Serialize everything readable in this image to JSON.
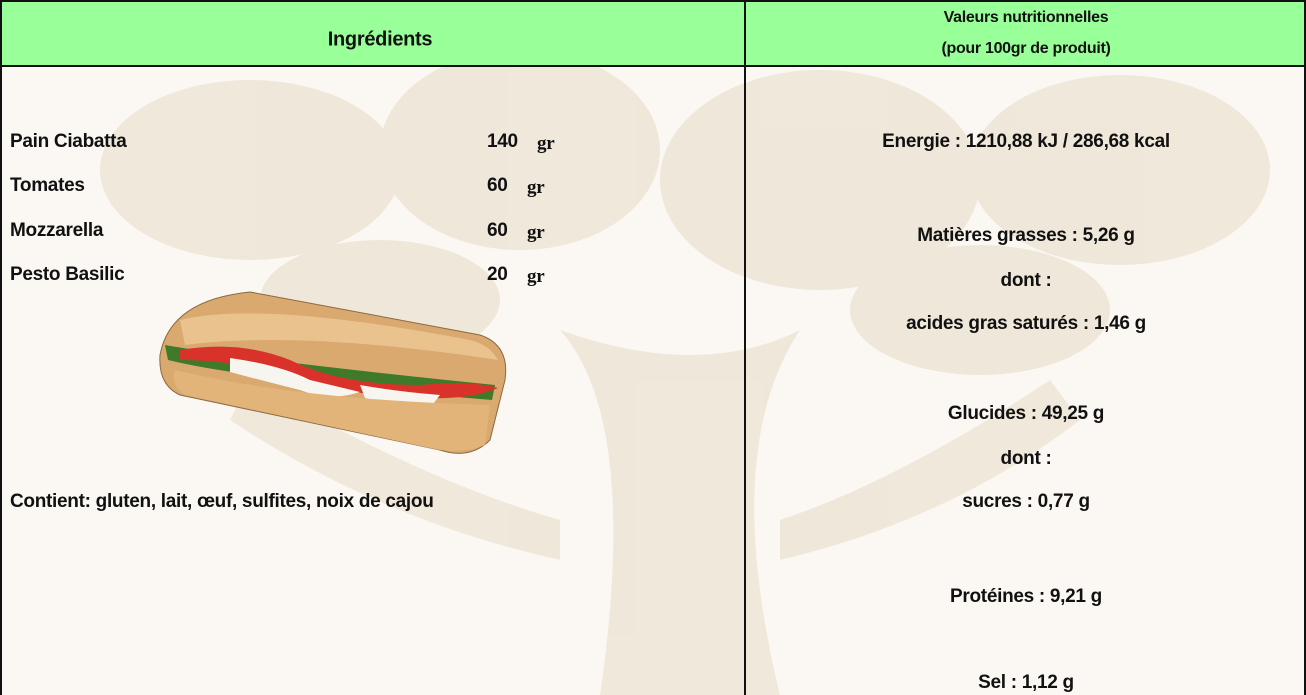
{
  "header": {
    "ingredients": "Ingrédients",
    "nutrition_title": "Valeurs nutritionnelles",
    "nutrition_subtitle": "(pour 100gr de produit)"
  },
  "ingredients": [
    {
      "name": "Pain Ciabatta",
      "qty": "140",
      "unit": "gr"
    },
    {
      "name": "Tomates",
      "qty": "60",
      "unit": "gr"
    },
    {
      "name": "Mozzarella",
      "qty": "60",
      "unit": "gr"
    },
    {
      "name": "Pesto Basilic",
      "qty": "20",
      "unit": "gr"
    }
  ],
  "allergens": "Contient: gluten, lait, œuf, sulfites, noix de cajou",
  "nutrition": [
    "Energie : 1210,88 kJ / 286,68 kcal",
    "Matières grasses : 5,26 g",
    "dont :",
    "acides gras saturés : 1,46 g",
    "Glucides : 49,25 g",
    "dont :",
    "sucres : 0,77 g",
    "Protéines : 9,21 g",
    "Sel : 1,12 g"
  ]
}
